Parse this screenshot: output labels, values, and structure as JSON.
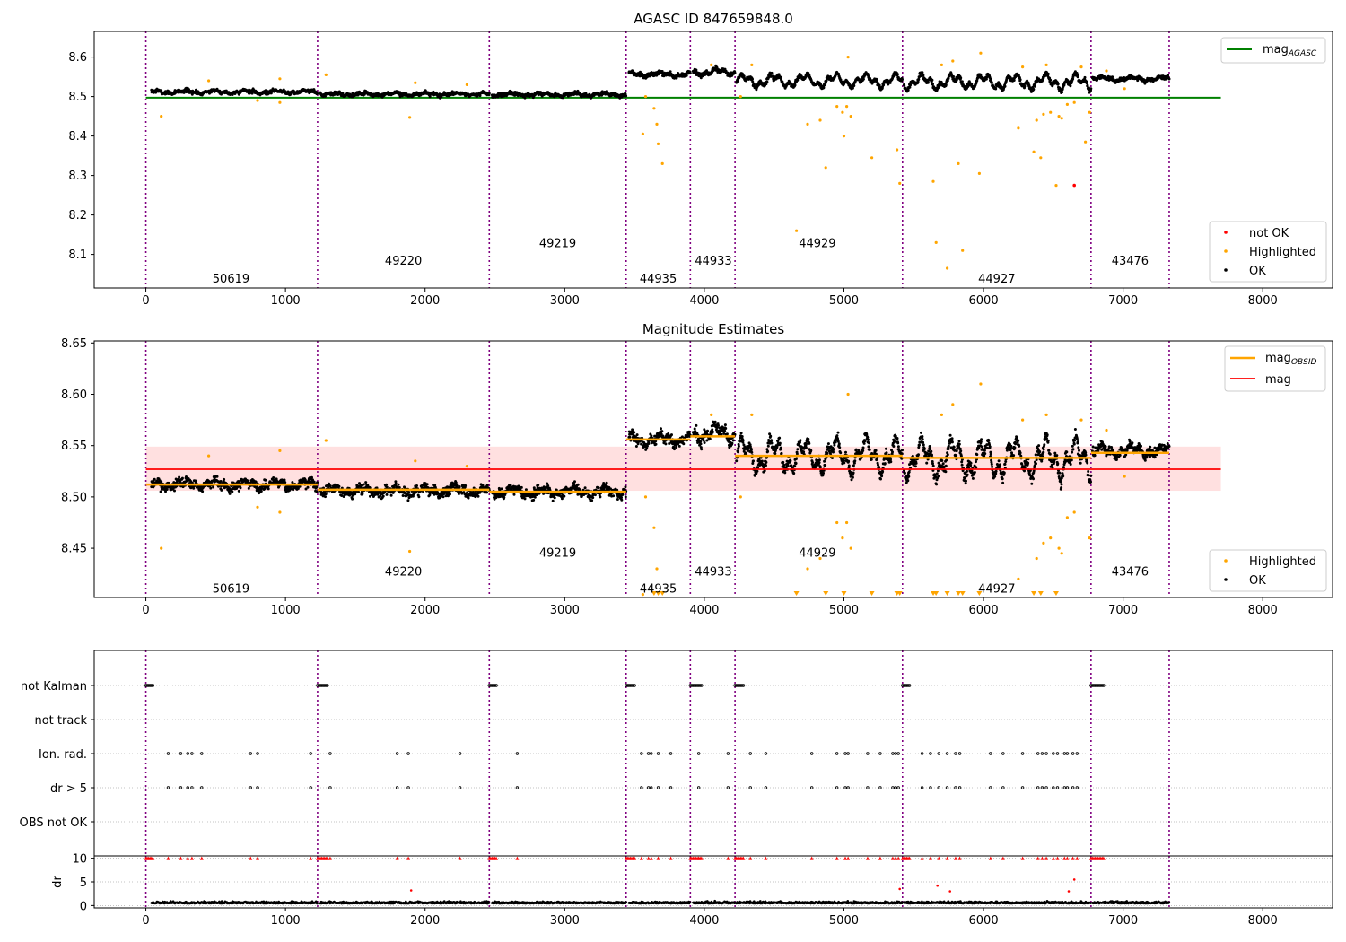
{
  "figure": {
    "title1": "AGASC ID 847659848.0",
    "title2": "Magnitude Estimates"
  },
  "colors": {
    "ok": "#000000",
    "highlighted": "#ffa500",
    "not_ok": "#ff0000",
    "agasc_line": "#008000",
    "obsid_line": "#ffa500",
    "mag_line": "#ff0000",
    "mag_band": "#ffd6d6",
    "obsid_sep": "#800080",
    "grid": "#b0b0b0"
  },
  "chart_data": [
    {
      "type": "scatter",
      "title": "AGASC ID 847659848.0",
      "xlim": [
        -370,
        8500
      ],
      "ylim": [
        8.015,
        8.665
      ],
      "xticks": [
        0,
        1000,
        2000,
        3000,
        4000,
        5000,
        6000,
        7000,
        8000
      ],
      "yticks": [
        8.1,
        8.2,
        8.3,
        8.4,
        8.5,
        8.6
      ],
      "agasc_mag": 8.497,
      "agasc_xrange": [
        0,
        7700
      ],
      "obsid_boundaries": [
        0,
        1230,
        2460,
        3440,
        3900,
        4220,
        5420,
        6770,
        7330
      ],
      "obsid_labels": [
        {
          "text": "50619",
          "x": 610,
          "y": 8.04
        },
        {
          "text": "49220",
          "x": 1845,
          "y": 8.085
        },
        {
          "text": "49219",
          "x": 2950,
          "y": 8.13
        },
        {
          "text": "44935",
          "x": 3670,
          "y": 8.04
        },
        {
          "text": "44933",
          "x": 4065,
          "y": 8.085
        },
        {
          "text": "44929",
          "x": 4810,
          "y": 8.13
        },
        {
          "text": "44927",
          "x": 6095,
          "y": 8.04
        },
        {
          "text": "43476",
          "x": 7050,
          "y": 8.085
        }
      ],
      "segments": [
        {
          "x0": 40,
          "x1": 1230,
          "level": 8.512,
          "noise": 0.008,
          "wave": 0.003
        },
        {
          "x0": 1250,
          "x1": 2460,
          "level": 8.506,
          "noise": 0.008,
          "wave": 0.003
        },
        {
          "x0": 2480,
          "x1": 3440,
          "level": 8.505,
          "noise": 0.008,
          "wave": 0.003
        },
        {
          "x0": 3460,
          "x1": 3900,
          "level": 8.556,
          "noise": 0.009,
          "wave": 0.004
        },
        {
          "x0": 3920,
          "x1": 4220,
          "level": 8.562,
          "noise": 0.01,
          "wave": 0.006
        },
        {
          "x0": 4230,
          "x1": 5420,
          "level": 8.54,
          "noise": 0.009,
          "wave": 0.012
        },
        {
          "x0": 5430,
          "x1": 6770,
          "level": 8.537,
          "noise": 0.01,
          "wave": 0.014
        },
        {
          "x0": 6780,
          "x1": 7330,
          "level": 8.545,
          "noise": 0.008,
          "wave": 0.004
        }
      ],
      "highlighted": [
        [
          110,
          8.45
        ],
        [
          450,
          8.54
        ],
        [
          800,
          8.49
        ],
        [
          960,
          8.485
        ],
        [
          960,
          8.545
        ],
        [
          1290,
          8.555
        ],
        [
          1890,
          8.447
        ],
        [
          1930,
          8.535
        ],
        [
          2300,
          8.53
        ],
        [
          3560,
          8.405
        ],
        [
          3580,
          8.5
        ],
        [
          3640,
          8.47
        ],
        [
          3660,
          8.43
        ],
        [
          3670,
          8.38
        ],
        [
          3700,
          8.33
        ],
        [
          4050,
          8.58
        ],
        [
          4260,
          8.5
        ],
        [
          4340,
          8.58
        ],
        [
          4660,
          8.16
        ],
        [
          4740,
          8.43
        ],
        [
          4830,
          8.44
        ],
        [
          4870,
          8.32
        ],
        [
          4950,
          8.475
        ],
        [
          4990,
          8.46
        ],
        [
          5000,
          8.4
        ],
        [
          5020,
          8.475
        ],
        [
          5030,
          8.6
        ],
        [
          5050,
          8.45
        ],
        [
          5200,
          8.345
        ],
        [
          5380,
          8.365
        ],
        [
          5400,
          8.28
        ],
        [
          5640,
          8.285
        ],
        [
          5660,
          8.13
        ],
        [
          5700,
          8.58
        ],
        [
          5740,
          8.065
        ],
        [
          5780,
          8.59
        ],
        [
          5820,
          8.33
        ],
        [
          5850,
          8.11
        ],
        [
          5970,
          8.305
        ],
        [
          5980,
          8.61
        ],
        [
          6250,
          8.42
        ],
        [
          6280,
          8.575
        ],
        [
          6360,
          8.36
        ],
        [
          6380,
          8.44
        ],
        [
          6410,
          8.345
        ],
        [
          6430,
          8.455
        ],
        [
          6450,
          8.58
        ],
        [
          6480,
          8.46
        ],
        [
          6520,
          8.275
        ],
        [
          6540,
          8.45
        ],
        [
          6560,
          8.445
        ],
        [
          6600,
          8.48
        ],
        [
          6650,
          8.485
        ],
        [
          6700,
          8.575
        ],
        [
          6730,
          8.385
        ],
        [
          6760,
          8.46
        ],
        [
          6880,
          8.565
        ],
        [
          7010,
          8.52
        ]
      ],
      "not_ok": [
        [
          6650,
          8.275
        ]
      ],
      "legend_upper": [
        {
          "label": "mag",
          "sub": "AGASC"
        }
      ],
      "legend_lower": [
        {
          "label": "not OK"
        },
        {
          "label": "Highlighted"
        },
        {
          "label": "OK"
        }
      ]
    },
    {
      "type": "scatter",
      "title": "Magnitude Estimates",
      "xlim": [
        -370,
        8500
      ],
      "ylim": [
        8.402,
        8.652
      ],
      "xticks": [
        0,
        1000,
        2000,
        3000,
        4000,
        5000,
        6000,
        7000,
        8000
      ],
      "yticks": [
        8.45,
        8.5,
        8.55,
        8.6,
        8.65
      ],
      "mag": 8.527,
      "mag_band": [
        8.506,
        8.549
      ],
      "mag_xrange": [
        0,
        7700
      ],
      "obsid_mags": [
        {
          "x0": 0,
          "x1": 1230,
          "mag": 8.512
        },
        {
          "x0": 1230,
          "x1": 2460,
          "mag": 8.507
        },
        {
          "x0": 2460,
          "x1": 3440,
          "mag": 8.505
        },
        {
          "x0": 3440,
          "x1": 3900,
          "mag": 8.556
        },
        {
          "x0": 3900,
          "x1": 4220,
          "mag": 8.559
        },
        {
          "x0": 4220,
          "x1": 5420,
          "mag": 8.54
        },
        {
          "x0": 5420,
          "x1": 6770,
          "mag": 8.538
        },
        {
          "x0": 6770,
          "x1": 7330,
          "mag": 8.543
        }
      ],
      "obsid_labels": [
        {
          "text": "50619",
          "x": 610,
          "y": 8.411
        },
        {
          "text": "49220",
          "x": 1845,
          "y": 8.428
        },
        {
          "text": "49219",
          "x": 2950,
          "y": 8.446
        },
        {
          "text": "44935",
          "x": 3670,
          "y": 8.411
        },
        {
          "text": "44933",
          "x": 4065,
          "y": 8.428
        },
        {
          "text": "44929",
          "x": 4810,
          "y": 8.446
        },
        {
          "text": "44927",
          "x": 6095,
          "y": 8.411
        },
        {
          "text": "43476",
          "x": 7050,
          "y": 8.428
        }
      ],
      "offscale_x": [
        3640,
        3670,
        3700,
        4660,
        4870,
        5000,
        5200,
        5380,
        5400,
        5640,
        5660,
        5740,
        5820,
        5850,
        5970,
        6360,
        6410,
        6520
      ],
      "legend_upper": [
        {
          "label": "mag",
          "sub": "OBSID"
        },
        {
          "label": "mag"
        }
      ],
      "legend_lower": [
        {
          "label": "Highlighted"
        },
        {
          "label": "OK"
        }
      ]
    },
    {
      "type": "scatter",
      "title": "",
      "xlim": [
        -370,
        8500
      ],
      "categories": [
        "not Kalman",
        "not track",
        "Ion. rad.",
        "dr > 5",
        "OBS not OK"
      ],
      "not_kalman_ranges": [
        [
          0,
          50
        ],
        [
          1230,
          1300
        ],
        [
          2460,
          2510
        ],
        [
          3440,
          3500
        ],
        [
          3900,
          3980
        ],
        [
          4220,
          4280
        ],
        [
          5420,
          5470
        ],
        [
          6770,
          6860
        ]
      ],
      "flag_x": [
        160,
        250,
        300,
        330,
        400,
        750,
        800,
        1180,
        1320,
        1800,
        1880,
        2250,
        2660,
        3550,
        3600,
        3620,
        3670,
        3760,
        3960,
        4170,
        4330,
        4440,
        4770,
        4950,
        5010,
        5030,
        5170,
        5260,
        5350,
        5370,
        5390,
        5560,
        5620,
        5680,
        5740,
        5800,
        5830,
        6050,
        6140,
        6280,
        6390,
        6420,
        6450,
        6500,
        6530,
        6580,
        6600,
        6640,
        6670
      ],
      "dr_ylim": [
        -0.5,
        10.5
      ],
      "dr_yticks": [
        0,
        5,
        10
      ],
      "dr_ylabel": "dr",
      "dr_outliers": [
        [
          1900,
          3.2
        ],
        [
          5400,
          3.5
        ],
        [
          5670,
          4.2
        ],
        [
          5760,
          3
        ],
        [
          6610,
          3
        ],
        [
          6650,
          5.5
        ]
      ]
    }
  ]
}
